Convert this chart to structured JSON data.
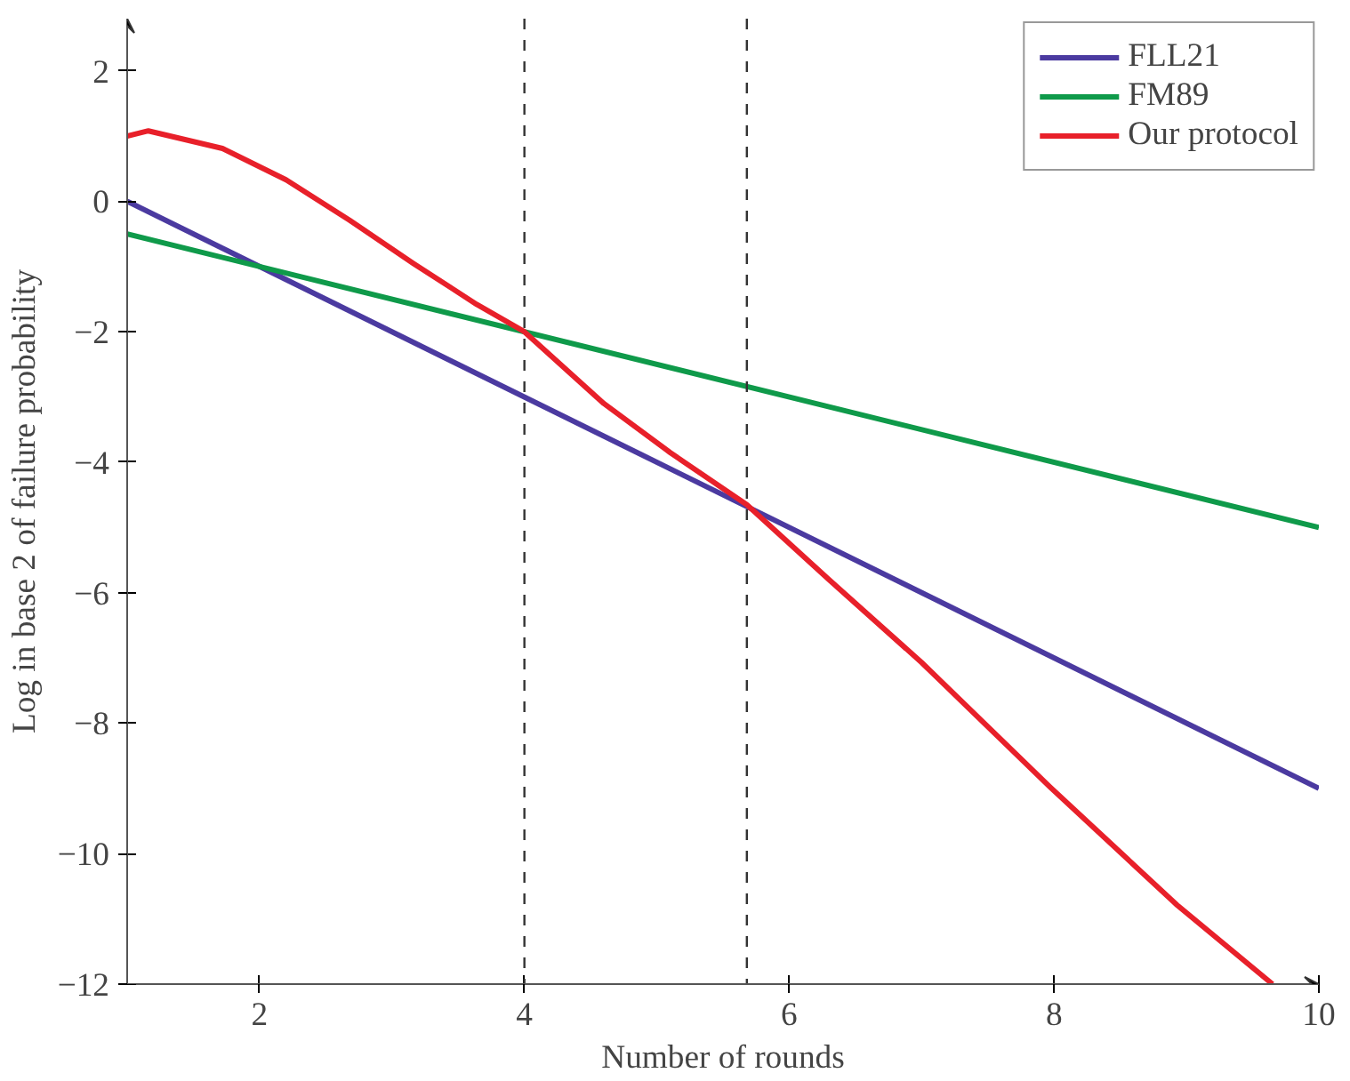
{
  "chart_data": {
    "type": "line",
    "xlabel": "Number of rounds",
    "ylabel": "Log in base 2 of failure probability",
    "xlim": [
      1,
      10
    ],
    "ylim": [
      -12,
      2.8
    ],
    "xticks": [
      2,
      4,
      6,
      8,
      10
    ],
    "yticks": [
      -12,
      -10,
      -8,
      -6,
      -4,
      -2,
      0,
      2
    ],
    "grid": false,
    "legend": "top right",
    "marker": "none",
    "line_style": "solid",
    "ref_lines": [
      {
        "axis": "x",
        "value": 4,
        "label": null,
        "color": "#333333",
        "line_style": "dashed"
      },
      {
        "axis": "x",
        "value": 5.68,
        "label": null,
        "color": "#333333",
        "line_style": "dashed"
      }
    ],
    "series": [
      {
        "name": "FLL21",
        "color": "#4b3aa0",
        "x": [
          1,
          10
        ],
        "values": [
          0,
          -9
        ]
      },
      {
        "name": "FM89",
        "color": "#0f9a4a",
        "x": [
          1,
          10
        ],
        "values": [
          -0.5,
          -5
        ]
      },
      {
        "name": "Our protocol",
        "color": "#e8202a",
        "x": [
          1,
          1.16,
          1.72,
          2.2,
          2.68,
          3.16,
          3.64,
          4,
          4.6,
          5.1,
          5.68,
          6.3,
          7.0,
          7.97,
          8.93,
          9.65
        ],
        "values": [
          1.0,
          1.08,
          0.81,
          0.33,
          -0.29,
          -0.95,
          -1.58,
          -2,
          -3.1,
          -3.85,
          -4.65,
          -5.8,
          -7.07,
          -8.98,
          -10.79,
          -12.0
        ]
      }
    ]
  }
}
